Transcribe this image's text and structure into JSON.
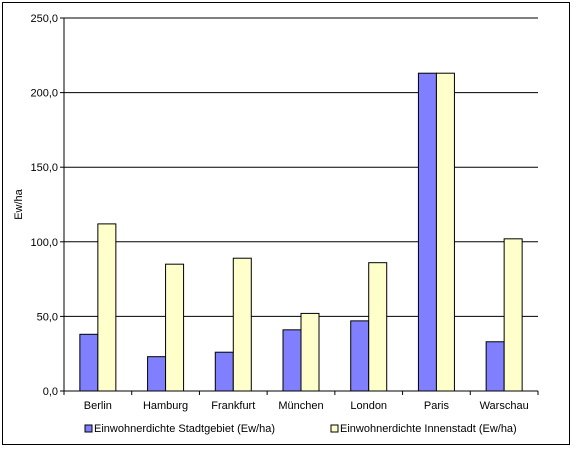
{
  "colors": {
    "stadtgebiet": "#8080ff",
    "innenstadt": "#ffffcc",
    "grid": "#000000"
  },
  "chart_data": {
    "type": "bar",
    "title": "",
    "xlabel": "",
    "ylabel": "Ew/ha",
    "categories": [
      "Berlin",
      "Hamburg",
      "Frankfurt",
      "München",
      "London",
      "Paris",
      "Warschau"
    ],
    "series": [
      {
        "name": "Einwohnerdichte Stadtgebiet (Ew/ha)",
        "values": [
          38,
          23,
          26,
          41,
          47,
          213,
          33
        ]
      },
      {
        "name": "Einwohnerdichte Innenstadt (Ew/ha)",
        "values": [
          112,
          85,
          89,
          52,
          86,
          213,
          102
        ]
      }
    ],
    "ylim": [
      0,
      250
    ],
    "yticks": [
      "0,0",
      "50,0",
      "100,0",
      "150,0",
      "200,0",
      "250,0"
    ],
    "grid": true,
    "legend_position": "bottom"
  }
}
